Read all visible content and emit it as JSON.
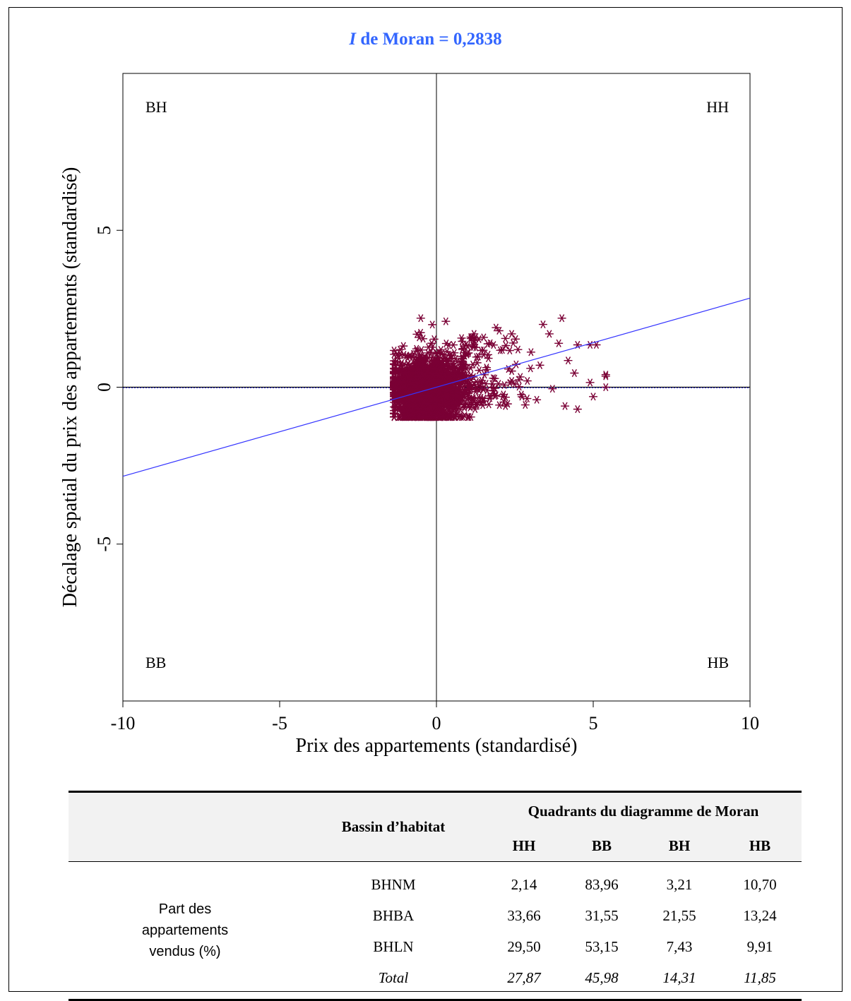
{
  "chart_data": {
    "type": "scatter",
    "title_prefix": "I",
    "title_rest": " de Moran = 0,2838",
    "xlabel": "Prix des appartements (standardisé)",
    "ylabel": "Décalage spatial du prix des appartements (standardisé)",
    "xlim": [
      -10,
      10
    ],
    "ylim": [
      -10,
      10
    ],
    "x_ticks": [
      -10,
      -5,
      0,
      5,
      10
    ],
    "x_tick_labels": [
      "-10",
      "-5",
      "0",
      "5",
      "10"
    ],
    "y_ticks": [
      -5,
      0,
      5
    ],
    "y_tick_labels": [
      "-5",
      "0",
      "5"
    ],
    "quadrant_labels": {
      "top_left": "BH",
      "top_right": "HH",
      "bottom_left": "BB",
      "bottom_right": "HB"
    },
    "regression_line": {
      "slope": 0.2838,
      "intercept": 0
    },
    "marker": "asterisk",
    "colors": {
      "points": "#7a0035",
      "regression": "#3333ff",
      "title": "#3366ff"
    },
    "notable_points": [
      {
        "x": -0.5,
        "y": 2.2
      },
      {
        "x": 0.3,
        "y": 2.1
      },
      {
        "x": 4.0,
        "y": 2.2
      },
      {
        "x": 3.4,
        "y": 2.0
      },
      {
        "x": 1.9,
        "y": 1.9
      },
      {
        "x": 2.0,
        "y": 1.8
      },
      {
        "x": 2.4,
        "y": 1.7
      },
      {
        "x": 1.2,
        "y": 1.7
      },
      {
        "x": 4.9,
        "y": 1.35
      },
      {
        "x": 5.1,
        "y": 1.35
      },
      {
        "x": 4.5,
        "y": 1.35
      },
      {
        "x": 3.9,
        "y": 1.4
      },
      {
        "x": 3.6,
        "y": 1.7
      },
      {
        "x": 4.2,
        "y": 0.85
      },
      {
        "x": 5.4,
        "y": 0.4
      },
      {
        "x": 5.4,
        "y": 0.35
      },
      {
        "x": 4.9,
        "y": 0.15
      },
      {
        "x": 4.4,
        "y": 0.45
      },
      {
        "x": 5.4,
        "y": 0.0
      },
      {
        "x": 3.7,
        "y": -0.05
      },
      {
        "x": 4.1,
        "y": -0.6
      },
      {
        "x": 4.5,
        "y": -0.7
      },
      {
        "x": 5.0,
        "y": -0.3
      },
      {
        "x": 3.2,
        "y": -0.4
      },
      {
        "x": 2.2,
        "y": -0.6
      },
      {
        "x": 2.9,
        "y": 0.2
      },
      {
        "x": 3.0,
        "y": 0.6
      },
      {
        "x": 3.3,
        "y": 0.7
      },
      {
        "x": 2.6,
        "y": 1.2
      },
      {
        "x": 2.5,
        "y": 0.1
      },
      {
        "x": 2.4,
        "y": 0.2
      }
    ]
  },
  "table": {
    "header_group": "Quadrants du diagramme de Moran",
    "basin_header": "Bassin d’habitat",
    "columns": [
      "HH",
      "BB",
      "BH",
      "HB"
    ],
    "row_label": "Part des appartements vendus (%)",
    "rows": [
      {
        "basin": "BHNM",
        "values": [
          "2,14",
          "83,96",
          "3,21",
          "10,70"
        ]
      },
      {
        "basin": "BHBA",
        "values": [
          "33,66",
          "31,55",
          "21,55",
          "13,24"
        ]
      },
      {
        "basin": "BHLN",
        "values": [
          "29,50",
          "53,15",
          "7,43",
          "9,91"
        ]
      },
      {
        "basin": "Total",
        "values": [
          "27,87",
          "45,98",
          "14,31",
          "11,85"
        ]
      }
    ]
  }
}
